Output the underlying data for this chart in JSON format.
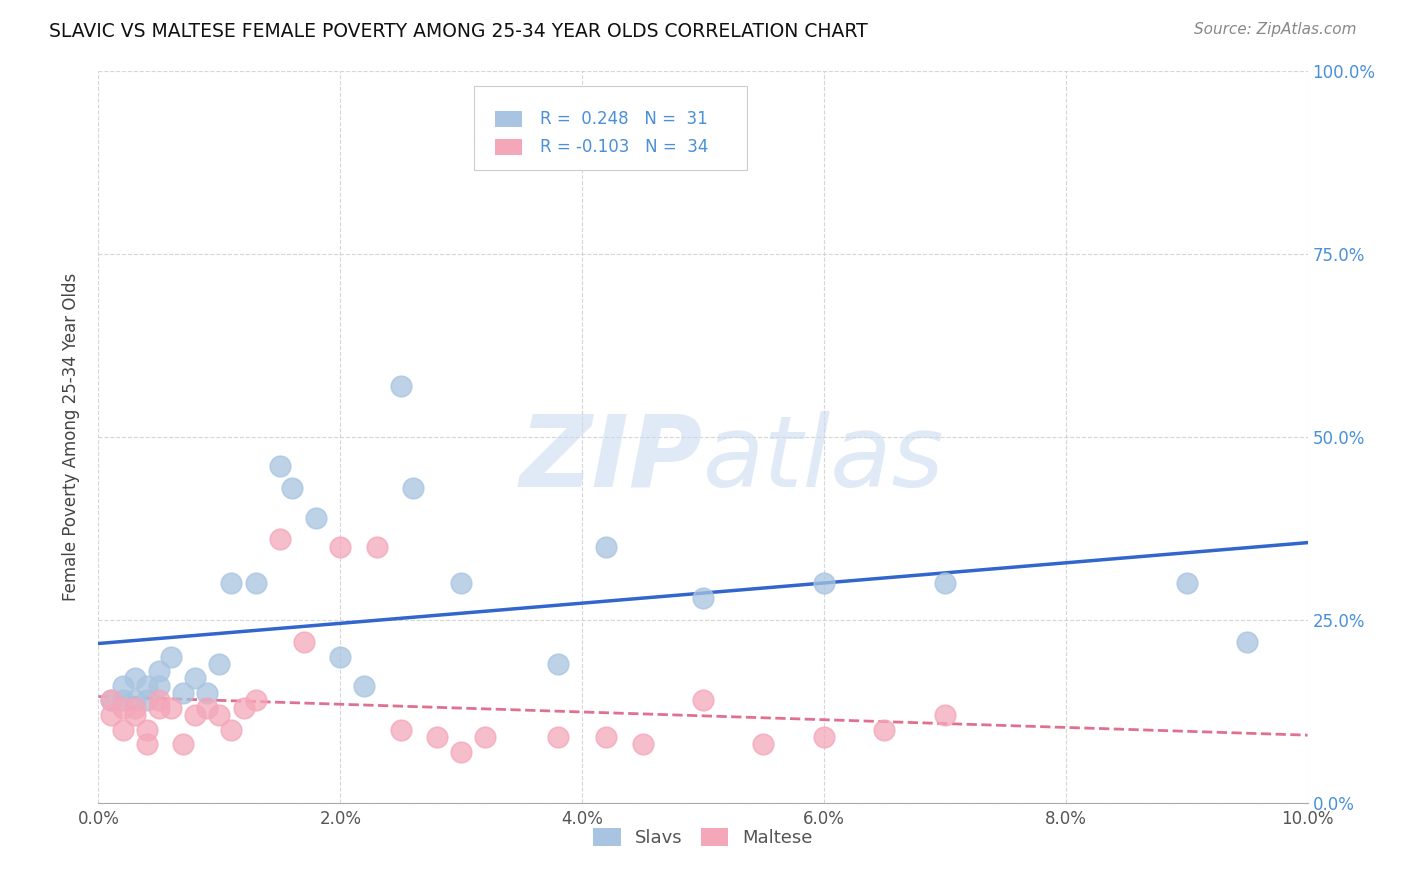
{
  "title": "SLAVIC VS MALTESE FEMALE POVERTY AMONG 25-34 YEAR OLDS CORRELATION CHART",
  "source": "Source: ZipAtlas.com",
  "ylabel": "Female Poverty Among 25-34 Year Olds",
  "xlim": [
    0.0,
    0.1
  ],
  "ylim": [
    0.0,
    1.0
  ],
  "slavs_color": "#a8c4e0",
  "slavs_edge_color": "#a8c4e0",
  "maltese_color": "#f4a7b9",
  "maltese_edge_color": "#f4a7b9",
  "slavs_line_color": "#3366cc",
  "maltese_line_color": "#e07090",
  "R_slavs": 0.248,
  "N_slavs": 31,
  "R_maltese": -0.103,
  "N_maltese": 34,
  "slavs_x": [
    0.001,
    0.002,
    0.002,
    0.003,
    0.003,
    0.004,
    0.004,
    0.005,
    0.005,
    0.006,
    0.007,
    0.008,
    0.009,
    0.01,
    0.011,
    0.013,
    0.015,
    0.016,
    0.018,
    0.02,
    0.022,
    0.025,
    0.026,
    0.03,
    0.038,
    0.042,
    0.05,
    0.06,
    0.07,
    0.09,
    0.095
  ],
  "slavs_y": [
    0.14,
    0.14,
    0.16,
    0.14,
    0.17,
    0.16,
    0.14,
    0.16,
    0.18,
    0.2,
    0.15,
    0.17,
    0.15,
    0.19,
    0.3,
    0.3,
    0.46,
    0.43,
    0.39,
    0.2,
    0.16,
    0.57,
    0.43,
    0.3,
    0.19,
    0.35,
    0.28,
    0.3,
    0.3,
    0.3,
    0.22
  ],
  "maltese_x": [
    0.001,
    0.001,
    0.002,
    0.002,
    0.003,
    0.003,
    0.004,
    0.004,
    0.005,
    0.005,
    0.006,
    0.007,
    0.008,
    0.009,
    0.01,
    0.011,
    0.012,
    0.013,
    0.015,
    0.017,
    0.02,
    0.023,
    0.025,
    0.028,
    0.03,
    0.032,
    0.038,
    0.042,
    0.045,
    0.05,
    0.055,
    0.06,
    0.065,
    0.07
  ],
  "maltese_y": [
    0.12,
    0.14,
    0.1,
    0.13,
    0.13,
    0.12,
    0.1,
    0.08,
    0.13,
    0.14,
    0.13,
    0.08,
    0.12,
    0.13,
    0.12,
    0.1,
    0.13,
    0.14,
    0.36,
    0.22,
    0.35,
    0.35,
    0.1,
    0.09,
    0.07,
    0.09,
    0.09,
    0.09,
    0.08,
    0.14,
    0.08,
    0.09,
    0.1,
    0.12
  ],
  "watermark_zip": "ZIP",
  "watermark_atlas": "atlas",
  "background_color": "#ffffff",
  "grid_color": "#cccccc",
  "right_tick_color": "#4a90d9"
}
